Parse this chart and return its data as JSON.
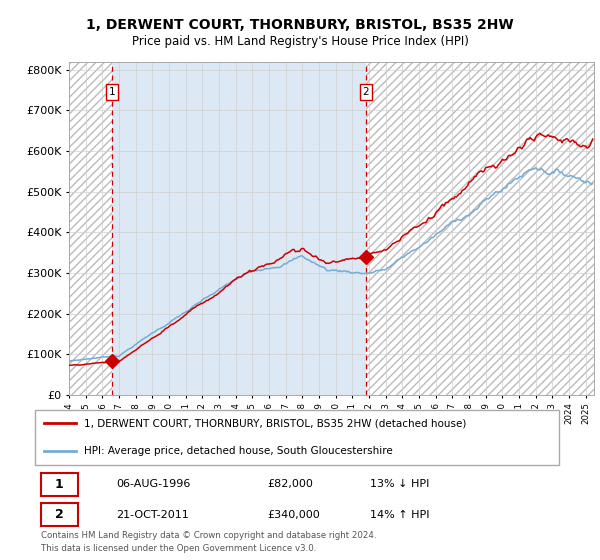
{
  "title": "1, DERWENT COURT, THORNBURY, BRISTOL, BS35 2HW",
  "subtitle": "Price paid vs. HM Land Registry's House Price Index (HPI)",
  "legend_line1": "1, DERWENT COURT, THORNBURY, BRISTOL, BS35 2HW (detached house)",
  "legend_line2": "HPI: Average price, detached house, South Gloucestershire",
  "transaction1_date": "06-AUG-1996",
  "transaction1_price": "£82,000",
  "transaction1_hpi": "13% ↓ HPI",
  "transaction2_date": "21-OCT-2011",
  "transaction2_price": "£340,000",
  "transaction2_hpi": "14% ↑ HPI",
  "footer": "Contains HM Land Registry data © Crown copyright and database right 2024.\nThis data is licensed under the Open Government Licence v3.0.",
  "ylim": [
    0,
    820000
  ],
  "hpi_color": "#74acd5",
  "price_color": "#cc0000",
  "bg_shaded": "#dce9f5",
  "marker_color": "#cc0000",
  "vline_color": "#cc0000",
  "trans1_year": 1996.58,
  "trans2_year": 2011.8,
  "trans1_price": 82000,
  "trans2_price": 340000,
  "hatch_color": "#bbbbbb"
}
